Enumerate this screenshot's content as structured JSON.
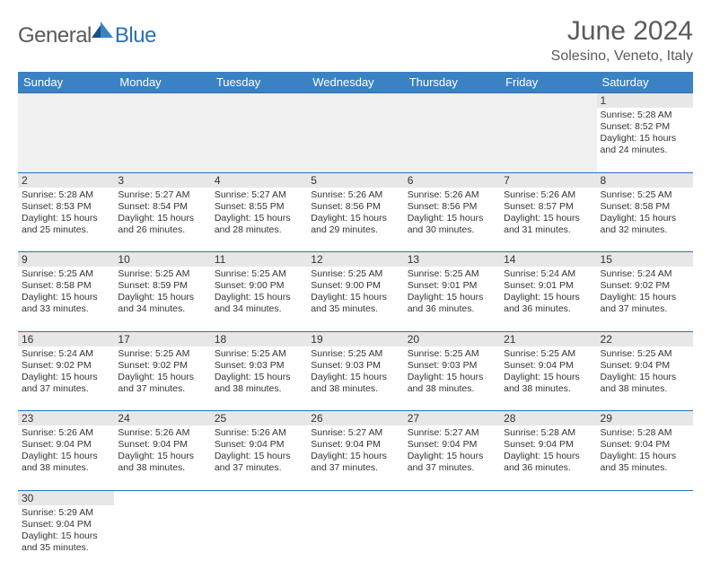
{
  "logo": {
    "main": "General",
    "sub": "Blue"
  },
  "title": "June 2024",
  "subtitle": "Solesino, Veneto, Italy",
  "colors": {
    "header_bg": "#3b82c4",
    "header_text": "#ffffff",
    "rule": "#2f6fb0",
    "daynum_bg": "#e7e7e7",
    "text": "#333333"
  },
  "day_headers": [
    "Sunday",
    "Monday",
    "Tuesday",
    "Wednesday",
    "Thursday",
    "Friday",
    "Saturday"
  ],
  "weeks": [
    [
      null,
      null,
      null,
      null,
      null,
      null,
      {
        "n": "1",
        "sr": "Sunrise: 5:28 AM",
        "ss": "Sunset: 8:52 PM",
        "d1": "Daylight: 15 hours",
        "d2": "and 24 minutes."
      }
    ],
    [
      {
        "n": "2",
        "sr": "Sunrise: 5:28 AM",
        "ss": "Sunset: 8:53 PM",
        "d1": "Daylight: 15 hours",
        "d2": "and 25 minutes."
      },
      {
        "n": "3",
        "sr": "Sunrise: 5:27 AM",
        "ss": "Sunset: 8:54 PM",
        "d1": "Daylight: 15 hours",
        "d2": "and 26 minutes."
      },
      {
        "n": "4",
        "sr": "Sunrise: 5:27 AM",
        "ss": "Sunset: 8:55 PM",
        "d1": "Daylight: 15 hours",
        "d2": "and 28 minutes."
      },
      {
        "n": "5",
        "sr": "Sunrise: 5:26 AM",
        "ss": "Sunset: 8:56 PM",
        "d1": "Daylight: 15 hours",
        "d2": "and 29 minutes."
      },
      {
        "n": "6",
        "sr": "Sunrise: 5:26 AM",
        "ss": "Sunset: 8:56 PM",
        "d1": "Daylight: 15 hours",
        "d2": "and 30 minutes."
      },
      {
        "n": "7",
        "sr": "Sunrise: 5:26 AM",
        "ss": "Sunset: 8:57 PM",
        "d1": "Daylight: 15 hours",
        "d2": "and 31 minutes."
      },
      {
        "n": "8",
        "sr": "Sunrise: 5:25 AM",
        "ss": "Sunset: 8:58 PM",
        "d1": "Daylight: 15 hours",
        "d2": "and 32 minutes."
      }
    ],
    [
      {
        "n": "9",
        "sr": "Sunrise: 5:25 AM",
        "ss": "Sunset: 8:58 PM",
        "d1": "Daylight: 15 hours",
        "d2": "and 33 minutes."
      },
      {
        "n": "10",
        "sr": "Sunrise: 5:25 AM",
        "ss": "Sunset: 8:59 PM",
        "d1": "Daylight: 15 hours",
        "d2": "and 34 minutes."
      },
      {
        "n": "11",
        "sr": "Sunrise: 5:25 AM",
        "ss": "Sunset: 9:00 PM",
        "d1": "Daylight: 15 hours",
        "d2": "and 34 minutes."
      },
      {
        "n": "12",
        "sr": "Sunrise: 5:25 AM",
        "ss": "Sunset: 9:00 PM",
        "d1": "Daylight: 15 hours",
        "d2": "and 35 minutes."
      },
      {
        "n": "13",
        "sr": "Sunrise: 5:25 AM",
        "ss": "Sunset: 9:01 PM",
        "d1": "Daylight: 15 hours",
        "d2": "and 36 minutes."
      },
      {
        "n": "14",
        "sr": "Sunrise: 5:24 AM",
        "ss": "Sunset: 9:01 PM",
        "d1": "Daylight: 15 hours",
        "d2": "and 36 minutes."
      },
      {
        "n": "15",
        "sr": "Sunrise: 5:24 AM",
        "ss": "Sunset: 9:02 PM",
        "d1": "Daylight: 15 hours",
        "d2": "and 37 minutes."
      }
    ],
    [
      {
        "n": "16",
        "sr": "Sunrise: 5:24 AM",
        "ss": "Sunset: 9:02 PM",
        "d1": "Daylight: 15 hours",
        "d2": "and 37 minutes."
      },
      {
        "n": "17",
        "sr": "Sunrise: 5:25 AM",
        "ss": "Sunset: 9:02 PM",
        "d1": "Daylight: 15 hours",
        "d2": "and 37 minutes."
      },
      {
        "n": "18",
        "sr": "Sunrise: 5:25 AM",
        "ss": "Sunset: 9:03 PM",
        "d1": "Daylight: 15 hours",
        "d2": "and 38 minutes."
      },
      {
        "n": "19",
        "sr": "Sunrise: 5:25 AM",
        "ss": "Sunset: 9:03 PM",
        "d1": "Daylight: 15 hours",
        "d2": "and 38 minutes."
      },
      {
        "n": "20",
        "sr": "Sunrise: 5:25 AM",
        "ss": "Sunset: 9:03 PM",
        "d1": "Daylight: 15 hours",
        "d2": "and 38 minutes."
      },
      {
        "n": "21",
        "sr": "Sunrise: 5:25 AM",
        "ss": "Sunset: 9:04 PM",
        "d1": "Daylight: 15 hours",
        "d2": "and 38 minutes."
      },
      {
        "n": "22",
        "sr": "Sunrise: 5:25 AM",
        "ss": "Sunset: 9:04 PM",
        "d1": "Daylight: 15 hours",
        "d2": "and 38 minutes."
      }
    ],
    [
      {
        "n": "23",
        "sr": "Sunrise: 5:26 AM",
        "ss": "Sunset: 9:04 PM",
        "d1": "Daylight: 15 hours",
        "d2": "and 38 minutes."
      },
      {
        "n": "24",
        "sr": "Sunrise: 5:26 AM",
        "ss": "Sunset: 9:04 PM",
        "d1": "Daylight: 15 hours",
        "d2": "and 38 minutes."
      },
      {
        "n": "25",
        "sr": "Sunrise: 5:26 AM",
        "ss": "Sunset: 9:04 PM",
        "d1": "Daylight: 15 hours",
        "d2": "and 37 minutes."
      },
      {
        "n": "26",
        "sr": "Sunrise: 5:27 AM",
        "ss": "Sunset: 9:04 PM",
        "d1": "Daylight: 15 hours",
        "d2": "and 37 minutes."
      },
      {
        "n": "27",
        "sr": "Sunrise: 5:27 AM",
        "ss": "Sunset: 9:04 PM",
        "d1": "Daylight: 15 hours",
        "d2": "and 37 minutes."
      },
      {
        "n": "28",
        "sr": "Sunrise: 5:28 AM",
        "ss": "Sunset: 9:04 PM",
        "d1": "Daylight: 15 hours",
        "d2": "and 36 minutes."
      },
      {
        "n": "29",
        "sr": "Sunrise: 5:28 AM",
        "ss": "Sunset: 9:04 PM",
        "d1": "Daylight: 15 hours",
        "d2": "and 35 minutes."
      }
    ],
    [
      {
        "n": "30",
        "sr": "Sunrise: 5:29 AM",
        "ss": "Sunset: 9:04 PM",
        "d1": "Daylight: 15 hours",
        "d2": "and 35 minutes."
      },
      null,
      null,
      null,
      null,
      null,
      null
    ]
  ]
}
